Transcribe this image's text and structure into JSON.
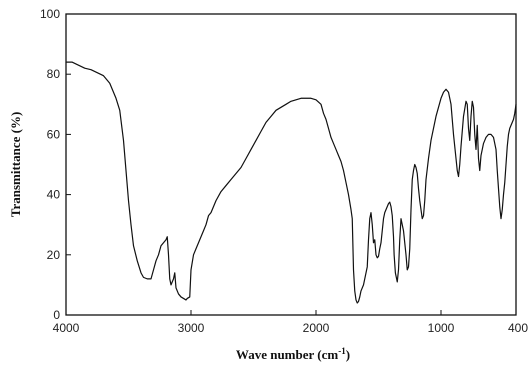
{
  "chart_data": {
    "type": "line",
    "title": "",
    "xlabel": "Wave number (cm",
    "xlabel_unit_sup": "-1",
    "xlabel_close": ")",
    "ylabel": "Transmittance (%)",
    "xlim": [
      4000,
      400
    ],
    "ylim": [
      0,
      100
    ],
    "x_reversed": true,
    "grid": false,
    "legend": "none",
    "x_ticks": [
      4000,
      3000,
      2000,
      1000,
      400
    ],
    "x_tick_labels": [
      "4000",
      "3000",
      "2000",
      "1000",
      "400"
    ],
    "y_ticks": [
      0,
      20,
      40,
      60,
      80,
      100
    ],
    "y_tick_labels": [
      "0",
      "20",
      "40",
      "60",
      "80",
      "100"
    ],
    "line_color": "#111111",
    "series": [
      {
        "values": [
          [
            4000,
            84
          ],
          [
            3950,
            84
          ],
          [
            3900,
            83
          ],
          [
            3850,
            82
          ],
          [
            3800,
            81.5
          ],
          [
            3750,
            80.5
          ],
          [
            3700,
            79.5
          ],
          [
            3650,
            77
          ],
          [
            3600,
            72
          ],
          [
            3570,
            68
          ],
          [
            3540,
            58
          ],
          [
            3520,
            48
          ],
          [
            3500,
            38
          ],
          [
            3480,
            30
          ],
          [
            3460,
            23
          ],
          [
            3430,
            18
          ],
          [
            3400,
            14
          ],
          [
            3380,
            12.5
          ],
          [
            3350,
            12
          ],
          [
            3320,
            12
          ],
          [
            3300,
            15
          ],
          [
            3280,
            18
          ],
          [
            3260,
            20
          ],
          [
            3240,
            23
          ],
          [
            3220,
            24
          ],
          [
            3200,
            25
          ],
          [
            3190,
            26
          ],
          [
            3180,
            20
          ],
          [
            3170,
            12
          ],
          [
            3160,
            10
          ],
          [
            3140,
            12
          ],
          [
            3130,
            14
          ],
          [
            3120,
            9
          ],
          [
            3100,
            7
          ],
          [
            3080,
            6
          ],
          [
            3060,
            5.5
          ],
          [
            3040,
            5
          ],
          [
            3030,
            5.5
          ],
          [
            3010,
            6
          ],
          [
            3000,
            15
          ],
          [
            2980,
            20
          ],
          [
            2960,
            22
          ],
          [
            2940,
            24
          ],
          [
            2920,
            26
          ],
          [
            2900,
            28
          ],
          [
            2880,
            30
          ],
          [
            2860,
            33
          ],
          [
            2840,
            34
          ],
          [
            2820,
            36
          ],
          [
            2800,
            38
          ],
          [
            2760,
            41
          ],
          [
            2720,
            43
          ],
          [
            2680,
            45
          ],
          [
            2640,
            47
          ],
          [
            2600,
            49
          ],
          [
            2560,
            52
          ],
          [
            2520,
            55
          ],
          [
            2480,
            58
          ],
          [
            2440,
            61
          ],
          [
            2400,
            64
          ],
          [
            2360,
            66
          ],
          [
            2320,
            68
          ],
          [
            2280,
            69
          ],
          [
            2240,
            70
          ],
          [
            2200,
            71
          ],
          [
            2160,
            71.5
          ],
          [
            2120,
            72
          ],
          [
            2080,
            72
          ],
          [
            2040,
            72
          ],
          [
            2000,
            71.5
          ],
          [
            1960,
            70
          ],
          [
            1940,
            67
          ],
          [
            1920,
            65
          ],
          [
            1900,
            62
          ],
          [
            1880,
            59
          ],
          [
            1860,
            57
          ],
          [
            1840,
            55
          ],
          [
            1820,
            53
          ],
          [
            1800,
            51
          ],
          [
            1780,
            48
          ],
          [
            1760,
            44
          ],
          [
            1740,
            40
          ],
          [
            1720,
            35
          ],
          [
            1710,
            32
          ],
          [
            1700,
            15
          ],
          [
            1690,
            8
          ],
          [
            1680,
            5
          ],
          [
            1670,
            4
          ],
          [
            1660,
            4.5
          ],
          [
            1650,
            6
          ],
          [
            1640,
            8
          ],
          [
            1620,
            10
          ],
          [
            1600,
            14
          ],
          [
            1590,
            16
          ],
          [
            1580,
            25
          ],
          [
            1570,
            32
          ],
          [
            1560,
            34
          ],
          [
            1550,
            30
          ],
          [
            1540,
            24
          ],
          [
            1530,
            25
          ],
          [
            1520,
            20
          ],
          [
            1510,
            19
          ],
          [
            1500,
            19.5
          ],
          [
            1490,
            22
          ],
          [
            1480,
            24
          ],
          [
            1470,
            28
          ],
          [
            1460,
            32
          ],
          [
            1450,
            34
          ],
          [
            1440,
            35
          ],
          [
            1430,
            36
          ],
          [
            1420,
            37
          ],
          [
            1410,
            37.5
          ],
          [
            1400,
            36
          ],
          [
            1390,
            33
          ],
          [
            1380,
            26
          ],
          [
            1375,
            20
          ],
          [
            1370,
            17
          ],
          [
            1365,
            14
          ],
          [
            1360,
            13
          ],
          [
            1350,
            11
          ],
          [
            1340,
            15
          ],
          [
            1330,
            25
          ],
          [
            1320,
            32
          ],
          [
            1310,
            30
          ],
          [
            1300,
            28
          ],
          [
            1290,
            24
          ],
          [
            1280,
            20
          ],
          [
            1270,
            15
          ],
          [
            1260,
            16
          ],
          [
            1250,
            22
          ],
          [
            1240,
            35
          ],
          [
            1230,
            45
          ],
          [
            1220,
            48
          ],
          [
            1210,
            50
          ],
          [
            1200,
            49
          ],
          [
            1190,
            47
          ],
          [
            1180,
            42
          ],
          [
            1170,
            38
          ],
          [
            1160,
            35
          ],
          [
            1150,
            32
          ],
          [
            1140,
            33
          ],
          [
            1130,
            38
          ],
          [
            1120,
            45
          ],
          [
            1100,
            52
          ],
          [
            1080,
            58
          ],
          [
            1060,
            62
          ],
          [
            1040,
            66
          ],
          [
            1020,
            69
          ],
          [
            1000,
            72
          ],
          [
            980,
            74
          ],
          [
            960,
            75
          ],
          [
            940,
            74
          ],
          [
            920,
            70
          ],
          [
            900,
            60
          ],
          [
            880,
            52
          ],
          [
            870,
            48
          ],
          [
            860,
            46
          ],
          [
            850,
            50
          ],
          [
            840,
            56
          ],
          [
            820,
            66
          ],
          [
            800,
            71
          ],
          [
            790,
            70
          ],
          [
            780,
            62
          ],
          [
            770,
            58
          ],
          [
            760,
            66
          ],
          [
            750,
            71
          ],
          [
            740,
            69
          ],
          [
            730,
            60
          ],
          [
            720,
            55
          ],
          [
            710,
            63
          ],
          [
            700,
            52
          ],
          [
            690,
            48
          ],
          [
            680,
            53
          ],
          [
            670,
            55
          ],
          [
            660,
            57
          ],
          [
            650,
            58
          ],
          [
            640,
            59
          ],
          [
            620,
            60
          ],
          [
            600,
            60
          ],
          [
            580,
            59
          ],
          [
            560,
            55
          ],
          [
            550,
            48
          ],
          [
            540,
            42
          ],
          [
            530,
            36
          ],
          [
            520,
            32
          ],
          [
            510,
            35
          ],
          [
            500,
            40
          ],
          [
            490,
            44
          ],
          [
            480,
            50
          ],
          [
            470,
            56
          ],
          [
            460,
            60
          ],
          [
            450,
            62
          ],
          [
            440,
            63
          ],
          [
            430,
            64
          ],
          [
            420,
            65
          ],
          [
            410,
            67
          ],
          [
            400,
            70
          ]
        ]
      }
    ]
  }
}
